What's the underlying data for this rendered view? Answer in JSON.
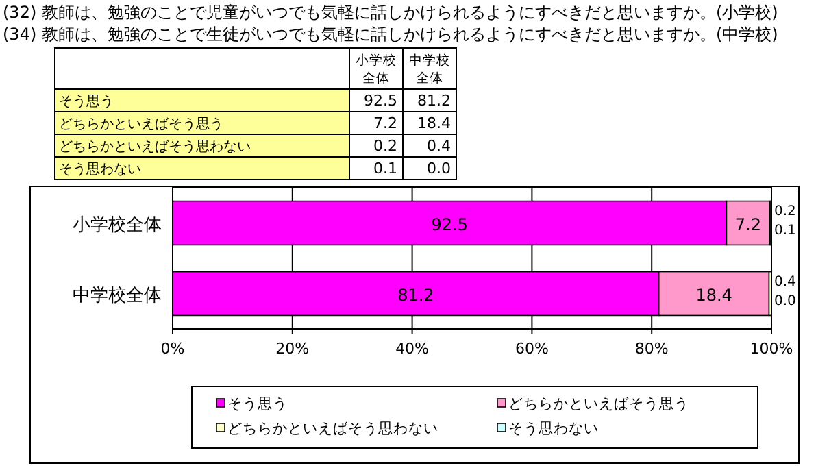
{
  "chart_data": {
    "type": "bar",
    "orientation": "horizontal",
    "stacked": true,
    "title": "(32) 教師は、勉強のことで児童がいつでも気軽に話しかけられるようにすべきだと思いますか。(小学校)",
    "subtitle": "(34) 教師は、勉強のことで生徒がいつでも気軽に話しかけられるようにすべきだと思いますか。(中学校)",
    "categories": [
      "小学校全体",
      "中学校全体"
    ],
    "series": [
      {
        "name": "そう思う",
        "color": "#ff00ff",
        "values": [
          92.5,
          81.2
        ],
        "value_labels": [
          "92.5",
          "81.2"
        ]
      },
      {
        "name": "どちらかといえばそう思う",
        "color": "#ff99cc",
        "values": [
          7.2,
          18.4
        ],
        "value_labels": [
          "7.2",
          "18.4"
        ]
      },
      {
        "name": "どちらかといえばそう思わない",
        "color": "#ffffcc",
        "values": [
          0.2,
          0.4
        ],
        "value_labels": [
          "0.2",
          "0.4"
        ]
      },
      {
        "name": "そう思わない",
        "color": "#ccffff",
        "values": [
          0.1,
          0.0
        ],
        "value_labels": [
          "0.1",
          "0.0"
        ]
      }
    ],
    "xlim": [
      0,
      100
    ],
    "xticks": [
      {
        "value": 0,
        "label": "0%"
      },
      {
        "value": 20,
        "label": "20%"
      },
      {
        "value": 40,
        "label": "40%"
      },
      {
        "value": 60,
        "label": "60%"
      },
      {
        "value": 80,
        "label": "80%"
      },
      {
        "value": 100,
        "label": "100%"
      }
    ],
    "grid": "x",
    "legend": "bottom"
  }
}
